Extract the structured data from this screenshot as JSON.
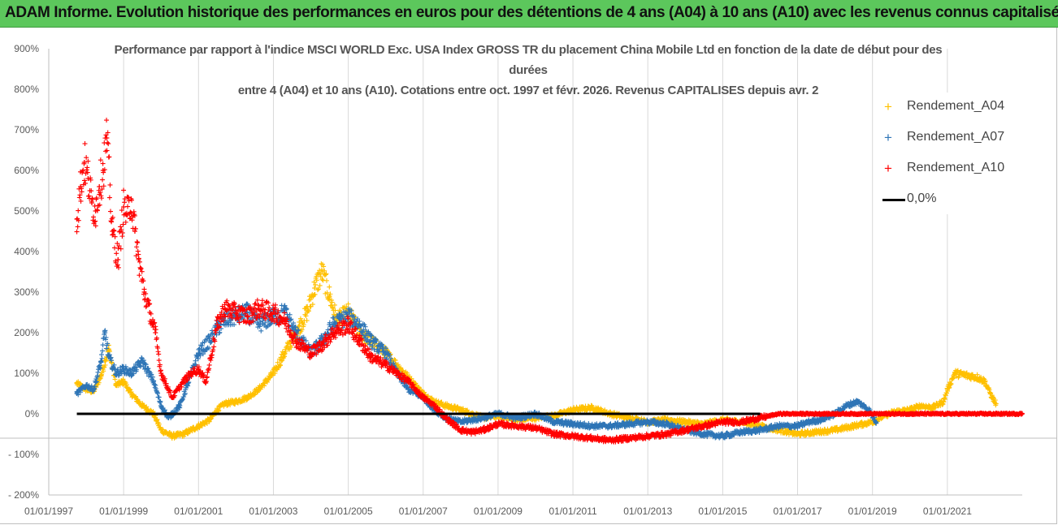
{
  "banner": {
    "title": "ADAM Informe. Evolution historique des performances en euros pour des détentions de 4 ans (A04) à 10 ans (A10) avec les revenus connus capitalisés"
  },
  "chart": {
    "title_line1": "Performance par rapport à l'indice MSCI WORLD Exc. USA Index GROSS TR  du placement China Mobile Ltd en fonction de la date de début pour des",
    "title_line2": "durées",
    "title_line3": "entre 4 (A04) et 10 ans (A10).  Cotations entre oct. 1997 et févr. 2026. Revenus CAPITALISES depuis avr. 2"
  },
  "legend": {
    "items": [
      {
        "label": "Rendement_A04",
        "color": "#ffc000",
        "marker": "+"
      },
      {
        "label": "Rendement_A07",
        "color": "#2e75b6",
        "marker": "+"
      },
      {
        "label": "Rendement_A10",
        "color": "#ff0000",
        "marker": "+"
      },
      {
        "label": "0,0%",
        "color": "#000000",
        "marker": "line"
      }
    ]
  },
  "chart_data": {
    "type": "scatter",
    "title": "Performance par rapport à l'indice MSCI WORLD Exc. USA Index GROSS TR du placement China Mobile Ltd en fonction de la date de début pour des durées entre 4 (A04) et 10 ans (A10). Cotations entre oct. 1997 et févr. 2026. Revenus CAPITALISES depuis avr. 2",
    "xlabel": "",
    "ylabel": "",
    "xlim": [
      1997.0,
      2023.0
    ],
    "ylim": [
      -200,
      900
    ],
    "y_ticks": [
      -200,
      -100,
      0,
      100,
      200,
      300,
      400,
      500,
      600,
      700,
      800,
      900
    ],
    "y_tick_labels": [
      "- 200%",
      "- 100%",
      "0%",
      "100%",
      "200%",
      "300%",
      "400%",
      "500%",
      "600%",
      "700%",
      "800%",
      "900%"
    ],
    "x_ticks": [
      1997,
      1999,
      2001,
      2003,
      2005,
      2007,
      2009,
      2011,
      2013,
      2015,
      2017,
      2019,
      2021
    ],
    "x_tick_labels": [
      "01/01/1997",
      "01/01/1999",
      "01/01/2001",
      "01/01/2003",
      "01/01/2005",
      "01/01/2007",
      "01/01/2009",
      "01/01/2011",
      "01/01/2013",
      "01/01/2015",
      "01/01/2017",
      "01/01/2019",
      "01/01/2021"
    ],
    "extra_gridline_y": -60,
    "series": [
      {
        "name": "Rendement_A04",
        "color": "#ffc000",
        "x": [
          1997.75,
          1998.0,
          1998.2,
          1998.4,
          1998.5,
          1998.6,
          1998.8,
          1999.0,
          1999.2,
          1999.5,
          1999.8,
          2000.0,
          2000.3,
          2000.6,
          2001.0,
          2001.3,
          2001.5,
          2001.7,
          2002.0,
          2002.3,
          2002.6,
          2003.0,
          2003.3,
          2003.6,
          2003.9,
          2004.1,
          2004.3,
          2004.5,
          2004.7,
          2005.0,
          2005.3,
          2005.6,
          2006.0,
          2006.3,
          2006.6,
          2007.0,
          2007.3,
          2007.6,
          2008.0,
          2008.3,
          2008.6,
          2009.0,
          2009.5,
          2010.0,
          2010.5,
          2011.0,
          2011.5,
          2012.0,
          2012.5,
          2013.0,
          2013.5,
          2014.0,
          2014.5,
          2015.0,
          2015.5,
          2016.0,
          2016.5,
          2017.0,
          2017.5,
          2018.0,
          2018.5,
          2019.0,
          2019.3,
          2019.6,
          2020.0,
          2020.3,
          2020.6,
          2020.9,
          2021.0,
          2021.2,
          2021.5,
          2021.8,
          2022.0,
          2022.2,
          2022.3
        ],
        "y": [
          75,
          60,
          55,
          95,
          130,
          160,
          70,
          80,
          50,
          20,
          0,
          -40,
          -55,
          -50,
          -30,
          -15,
          10,
          25,
          30,
          40,
          60,
          100,
          150,
          200,
          250,
          310,
          350,
          290,
          230,
          250,
          200,
          180,
          150,
          120,
          90,
          50,
          30,
          20,
          10,
          0,
          -10,
          -5,
          -15,
          -10,
          -5,
          10,
          15,
          0,
          -10,
          -20,
          -15,
          -20,
          -25,
          -15,
          -20,
          -30,
          -40,
          -50,
          -45,
          -40,
          -30,
          -20,
          -5,
          5,
          10,
          20,
          15,
          30,
          60,
          100,
          95,
          90,
          80,
          40,
          25
        ]
      },
      {
        "name": "Rendement_A07",
        "color": "#2e75b6",
        "x": [
          1997.75,
          1998.0,
          1998.2,
          1998.4,
          1998.5,
          1998.6,
          1998.8,
          1999.0,
          1999.2,
          1999.5,
          1999.8,
          2000.0,
          2000.2,
          2000.5,
          2000.7,
          2001.0,
          2001.3,
          2001.5,
          2001.7,
          2002.0,
          2002.3,
          2002.6,
          2003.0,
          2003.3,
          2003.6,
          2004.0,
          2004.3,
          2004.6,
          2005.0,
          2005.3,
          2005.6,
          2006.0,
          2006.3,
          2006.6,
          2007.0,
          2007.3,
          2007.6,
          2008.0,
          2008.3,
          2008.6,
          2009.0,
          2009.5,
          2010.0,
          2010.5,
          2011.0,
          2011.5,
          2012.0,
          2012.5,
          2013.0,
          2013.5,
          2014.0,
          2014.5,
          2015.0,
          2015.5,
          2016.0,
          2016.5,
          2017.0,
          2017.3,
          2017.6,
          2018.0,
          2018.3,
          2018.6,
          2018.9,
          2019.1
        ],
        "y": [
          50,
          70,
          60,
          130,
          200,
          140,
          100,
          110,
          100,
          130,
          80,
          20,
          -10,
          20,
          70,
          150,
          180,
          210,
          230,
          240,
          250,
          220,
          240,
          250,
          200,
          150,
          180,
          220,
          240,
          220,
          180,
          150,
          100,
          60,
          40,
          10,
          -10,
          -20,
          -15,
          -10,
          0,
          -10,
          0,
          -20,
          -25,
          -30,
          -30,
          -25,
          -20,
          -25,
          -40,
          -50,
          -55,
          -45,
          -40,
          -30,
          -30,
          -20,
          -15,
          0,
          20,
          30,
          10,
          -20
        ]
      },
      {
        "name": "Rendement_A10",
        "color": "#ff0000",
        "x": [
          1997.75,
          1997.85,
          1997.95,
          1998.05,
          1998.15,
          1998.25,
          1998.35,
          1998.45,
          1998.55,
          1998.7,
          1998.85,
          1999.0,
          1999.1,
          1999.2,
          1999.3,
          1999.4,
          1999.55,
          1999.7,
          1999.85,
          2000.0,
          2000.3,
          2000.6,
          2000.8,
          2001.0,
          2001.2,
          2001.5,
          2001.7,
          2002.0,
          2002.3,
          2002.6,
          2003.0,
          2003.3,
          2003.6,
          2004.0,
          2004.3,
          2004.6,
          2005.0,
          2005.3,
          2005.6,
          2006.0,
          2006.3,
          2006.6,
          2007.0,
          2007.3,
          2007.6,
          2008.0,
          2008.3,
          2008.6,
          2009.0,
          2009.5,
          2010.0,
          2010.5,
          2011.0,
          2011.5,
          2012.0,
          2012.5,
          2013.0,
          2013.5,
          2014.0,
          2014.5,
          2015.0,
          2015.5,
          2016.0,
          2016.5,
          2017.0,
          2018.0,
          2019.0,
          2020.0,
          2021.0,
          2022.0,
          2023.0
        ],
        "y": [
          480,
          560,
          620,
          580,
          520,
          500,
          560,
          600,
          680,
          450,
          380,
          510,
          490,
          530,
          450,
          380,
          300,
          250,
          200,
          100,
          40,
          80,
          100,
          110,
          80,
          220,
          260,
          250,
          240,
          260,
          250,
          230,
          180,
          150,
          170,
          200,
          220,
          180,
          140,
          120,
          100,
          80,
          40,
          20,
          -10,
          -40,
          -45,
          -40,
          -25,
          -30,
          -35,
          -50,
          -55,
          -60,
          -65,
          -60,
          -55,
          -50,
          -40,
          -30,
          -20,
          -20,
          -10,
          0,
          0,
          0,
          0,
          0,
          0,
          0,
          0
        ]
      },
      {
        "name": "0,0%",
        "color": "#000000",
        "type": "line",
        "x": [
          1997.75,
          2016.0
        ],
        "y": [
          0,
          0
        ]
      }
    ]
  }
}
